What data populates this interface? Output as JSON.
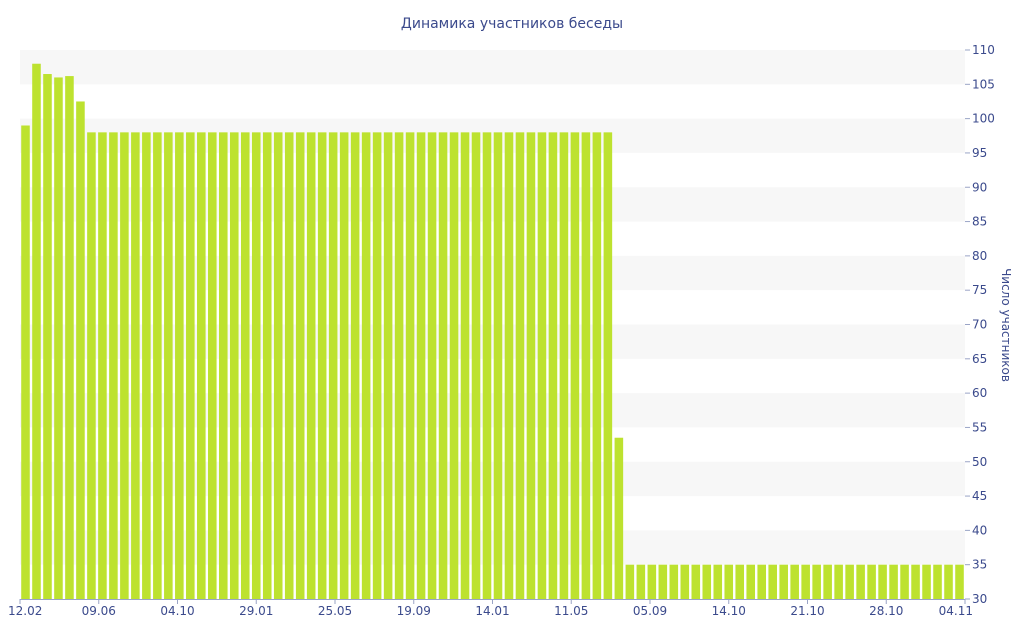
{
  "chart_data": {
    "type": "bar",
    "title": "Динамика участников беседы",
    "ylabel": "Число участников",
    "xlabel": "",
    "ylim": [
      30,
      110
    ],
    "y_ticks": [
      30,
      35,
      40,
      45,
      50,
      55,
      60,
      65,
      70,
      75,
      80,
      85,
      90,
      95,
      100,
      105,
      110
    ],
    "y_axis_side": "right",
    "grid": "alternating horizontal bands",
    "x_tick_labels": [
      "12.02",
      "09.06",
      "04.10",
      "29.01",
      "25.05",
      "19.09",
      "14.01",
      "11.05",
      "05.09",
      "14.10",
      "21.10",
      "28.10",
      "04.11"
    ],
    "values": [
      99,
      108,
      106.5,
      106,
      106.2,
      102.5,
      98,
      98,
      98,
      98,
      98,
      98,
      98,
      98,
      98,
      98,
      98,
      98,
      98,
      98,
      98,
      98,
      98,
      98,
      98,
      98,
      98,
      98,
      98,
      98,
      98,
      98,
      98,
      98,
      98,
      98,
      98,
      98,
      98,
      98,
      98,
      98,
      98,
      98,
      98,
      98,
      98,
      98,
      98,
      98,
      98,
      98,
      98,
      98,
      53.5,
      35,
      35,
      35,
      35,
      35,
      35,
      35,
      35,
      35,
      35,
      35,
      35,
      35,
      35,
      35,
      35,
      35,
      35,
      35,
      35,
      35,
      35,
      35,
      35,
      35,
      35,
      35,
      35,
      35,
      35,
      35
    ]
  },
  "colors": {
    "bar": "#bde22f",
    "text": "#3b4a8c",
    "band": "#f7f7f7"
  }
}
